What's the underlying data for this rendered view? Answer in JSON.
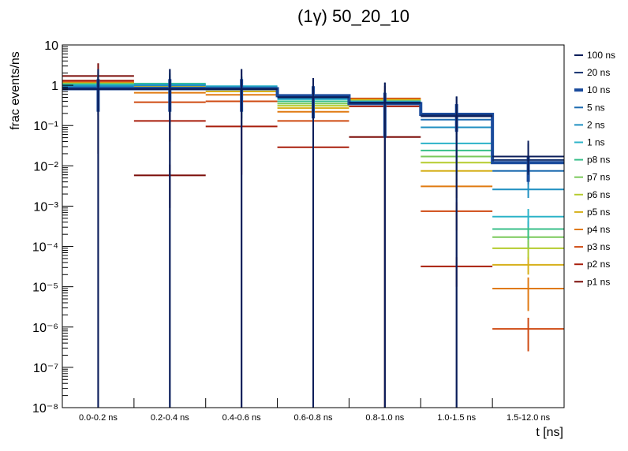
{
  "chart_data": {
    "type": "step",
    "title": "(1γ) 50_20_10",
    "xlabel": "t [ns]",
    "ylabel": "frac events/ns",
    "yscale": "log",
    "ylim": [
      1e-08,
      10
    ],
    "y_tick_labels": [
      "10⁻⁸",
      "10⁻⁷",
      "10⁻⁶",
      "10⁻⁵",
      "10⁻⁴",
      "10⁻³",
      "10⁻²",
      "10⁻¹",
      "1",
      "10"
    ],
    "categories": [
      "0.0-0.2 ns",
      "0.2-0.4 ns",
      "0.4-0.6 ns",
      "0.6-0.8 ns",
      "0.8-1.0 ns",
      "1.0-1.5 ns",
      "1.5-12.0 ns"
    ],
    "legend_position": "right",
    "series": [
      {
        "name": "100 ns",
        "color": "#0b1d5a",
        "width": 2,
        "values": [
          0.8,
          0.8,
          0.8,
          0.5,
          0.37,
          0.17,
          0.017
        ],
        "err_lo": [
          0.8,
          0.8,
          0.8,
          0.5,
          0.37,
          0.17,
          0.01
        ],
        "err_hi": [
          1.7,
          1.7,
          1.7,
          1.0,
          0.8,
          0.35,
          0.025
        ]
      },
      {
        "name": "20 ns",
        "color": "#13306e",
        "width": 2,
        "values": [
          0.81,
          0.81,
          0.81,
          0.51,
          0.36,
          0.18,
          0.014
        ],
        "err_lo": [
          0.81,
          0.81,
          0.81,
          0.51,
          0.36,
          0.18,
          0.008
        ],
        "err_hi": [
          1.7,
          1.7,
          1.7,
          1.0,
          0.8,
          0.35,
          0.022
        ]
      },
      {
        "name": "10 ns",
        "color": "#1a4b9c",
        "width": 4,
        "values": [
          0.82,
          0.82,
          0.82,
          0.55,
          0.35,
          0.19,
          0.012
        ],
        "err_lo": [
          0.6,
          0.6,
          0.6,
          0.4,
          0.3,
          0.12,
          0.008
        ],
        "err_hi": [
          0.6,
          0.6,
          0.6,
          0.4,
          0.3,
          0.15,
          0.005
        ]
      },
      {
        "name": "5 ns",
        "color": "#1c6ab0",
        "width": 2,
        "values": [
          0.88,
          0.88,
          0.85,
          0.52,
          0.36,
          0.14,
          0.0075
        ],
        "err_lo": [
          0.7,
          0.7,
          0.7,
          0.4,
          0.3,
          0.08,
          0.004
        ],
        "err_hi": [
          0.7,
          0.7,
          0.7,
          0.4,
          0.3,
          0.1,
          0.004
        ]
      },
      {
        "name": "2 ns",
        "color": "#1f8fc1",
        "width": 2,
        "values": [
          0.95,
          1.0,
          0.9,
          0.48,
          0.38,
          0.09,
          0.0026
        ],
        "err_lo": [
          0.7,
          0.7,
          0.7,
          0.4,
          0.3,
          0.05,
          0.001
        ],
        "err_hi": [
          0.7,
          0.7,
          0.7,
          0.4,
          0.3,
          0.05,
          0.001
        ]
      },
      {
        "name": "1 ns",
        "color": "#2cb3c8",
        "width": 2,
        "values": [
          1.0,
          1.05,
          0.95,
          0.45,
          0.4,
          0.036,
          0.00055
        ],
        "err_lo": [
          0.7,
          0.7,
          0.7,
          0.4,
          0.3,
          0.02,
          0.00025
        ],
        "err_hi": [
          0.7,
          0.7,
          0.7,
          0.4,
          0.3,
          0.02,
          0.0003
        ]
      },
      {
        "name": "p8 ns",
        "color": "#38bf8a",
        "width": 2,
        "values": [
          1.05,
          1.1,
          0.9,
          0.4,
          0.38,
          0.024,
          0.00027
        ],
        "err_lo": [
          0.7,
          0.9,
          0.8,
          0.3,
          0.3,
          0.012,
          0.00012
        ],
        "err_hi": [
          0.7,
          0.9,
          0.8,
          0.3,
          0.3,
          0.012,
          0.00015
        ]
      },
      {
        "name": "p7 ns",
        "color": "#7ac95a",
        "width": 2,
        "values": [
          1.08,
          1.05,
          0.85,
          0.35,
          0.4,
          0.017,
          0.00017
        ],
        "err_lo": [
          0.7,
          0.8,
          0.7,
          0.3,
          0.3,
          0.008,
          8e-05
        ],
        "err_hi": [
          0.7,
          0.8,
          0.7,
          0.3,
          0.3,
          0.008,
          0.0001
        ]
      },
      {
        "name": "p6 ns",
        "color": "#b5cc2e",
        "width": 2,
        "values": [
          1.1,
          1.0,
          0.78,
          0.31,
          0.42,
          0.012,
          9e-05
        ],
        "err_lo": [
          0.7,
          0.7,
          0.6,
          0.2,
          0.3,
          0.006,
          4e-05
        ],
        "err_hi": [
          0.7,
          0.7,
          0.6,
          0.2,
          0.3,
          0.006,
          5e-05
        ]
      },
      {
        "name": "p5 ns",
        "color": "#d6b01a",
        "width": 2,
        "values": [
          1.12,
          0.95,
          0.7,
          0.27,
          0.43,
          0.0075,
          3.5e-05
        ],
        "err_lo": [
          0.7,
          0.6,
          0.5,
          0.2,
          0.3,
          0.0035,
          1.5e-05
        ],
        "err_hi": [
          0.7,
          0.6,
          0.5,
          0.2,
          0.3,
          0.0035,
          2e-05
        ]
      },
      {
        "name": "p4 ns",
        "color": "#e07a12",
        "width": 2,
        "values": [
          1.15,
          0.65,
          0.58,
          0.22,
          0.45,
          0.0031,
          9e-06
        ],
        "err_lo": [
          0.7,
          0.4,
          0.4,
          0.15,
          0.3,
          0.0015,
          6.5e-06
        ],
        "err_hi": [
          0.7,
          0.4,
          0.4,
          0.15,
          0.3,
          0.0015,
          8e-06
        ]
      },
      {
        "name": "p3 ns",
        "color": "#cf4a12",
        "width": 2,
        "values": [
          1.2,
          0.38,
          0.4,
          0.13,
          0.47,
          0.00075,
          9e-07
        ],
        "err_lo": [
          0.7,
          0.25,
          0.25,
          0.1,
          0.3,
          0.0005,
          6.5e-07
        ],
        "err_hi": [
          0.7,
          0.25,
          0.25,
          0.1,
          0.3,
          0.0005,
          8e-07
        ]
      },
      {
        "name": "p2 ns",
        "color": "#a81e0c",
        "width": 2,
        "values": [
          1.3,
          0.13,
          0.095,
          0.029,
          0.3,
          3.2e-05,
          null
        ],
        "err_lo": [
          0.9,
          0.09,
          0.089,
          0.028,
          0.3,
          2.2e-05,
          null
        ],
        "err_hi": [
          0.9,
          0.09,
          0.089,
          0.028,
          0.3,
          2.2e-05,
          null
        ]
      },
      {
        "name": "p1 ns",
        "color": "#7a0a06",
        "width": 2,
        "values": [
          1.7,
          0.0058,
          null,
          null,
          0.052,
          null,
          null
        ],
        "err_lo": [
          1.68,
          0.0049,
          null,
          null,
          0.052,
          null,
          null
        ],
        "err_hi": [
          1.8,
          0.005,
          null,
          null,
          0.9,
          null,
          null
        ]
      }
    ]
  }
}
